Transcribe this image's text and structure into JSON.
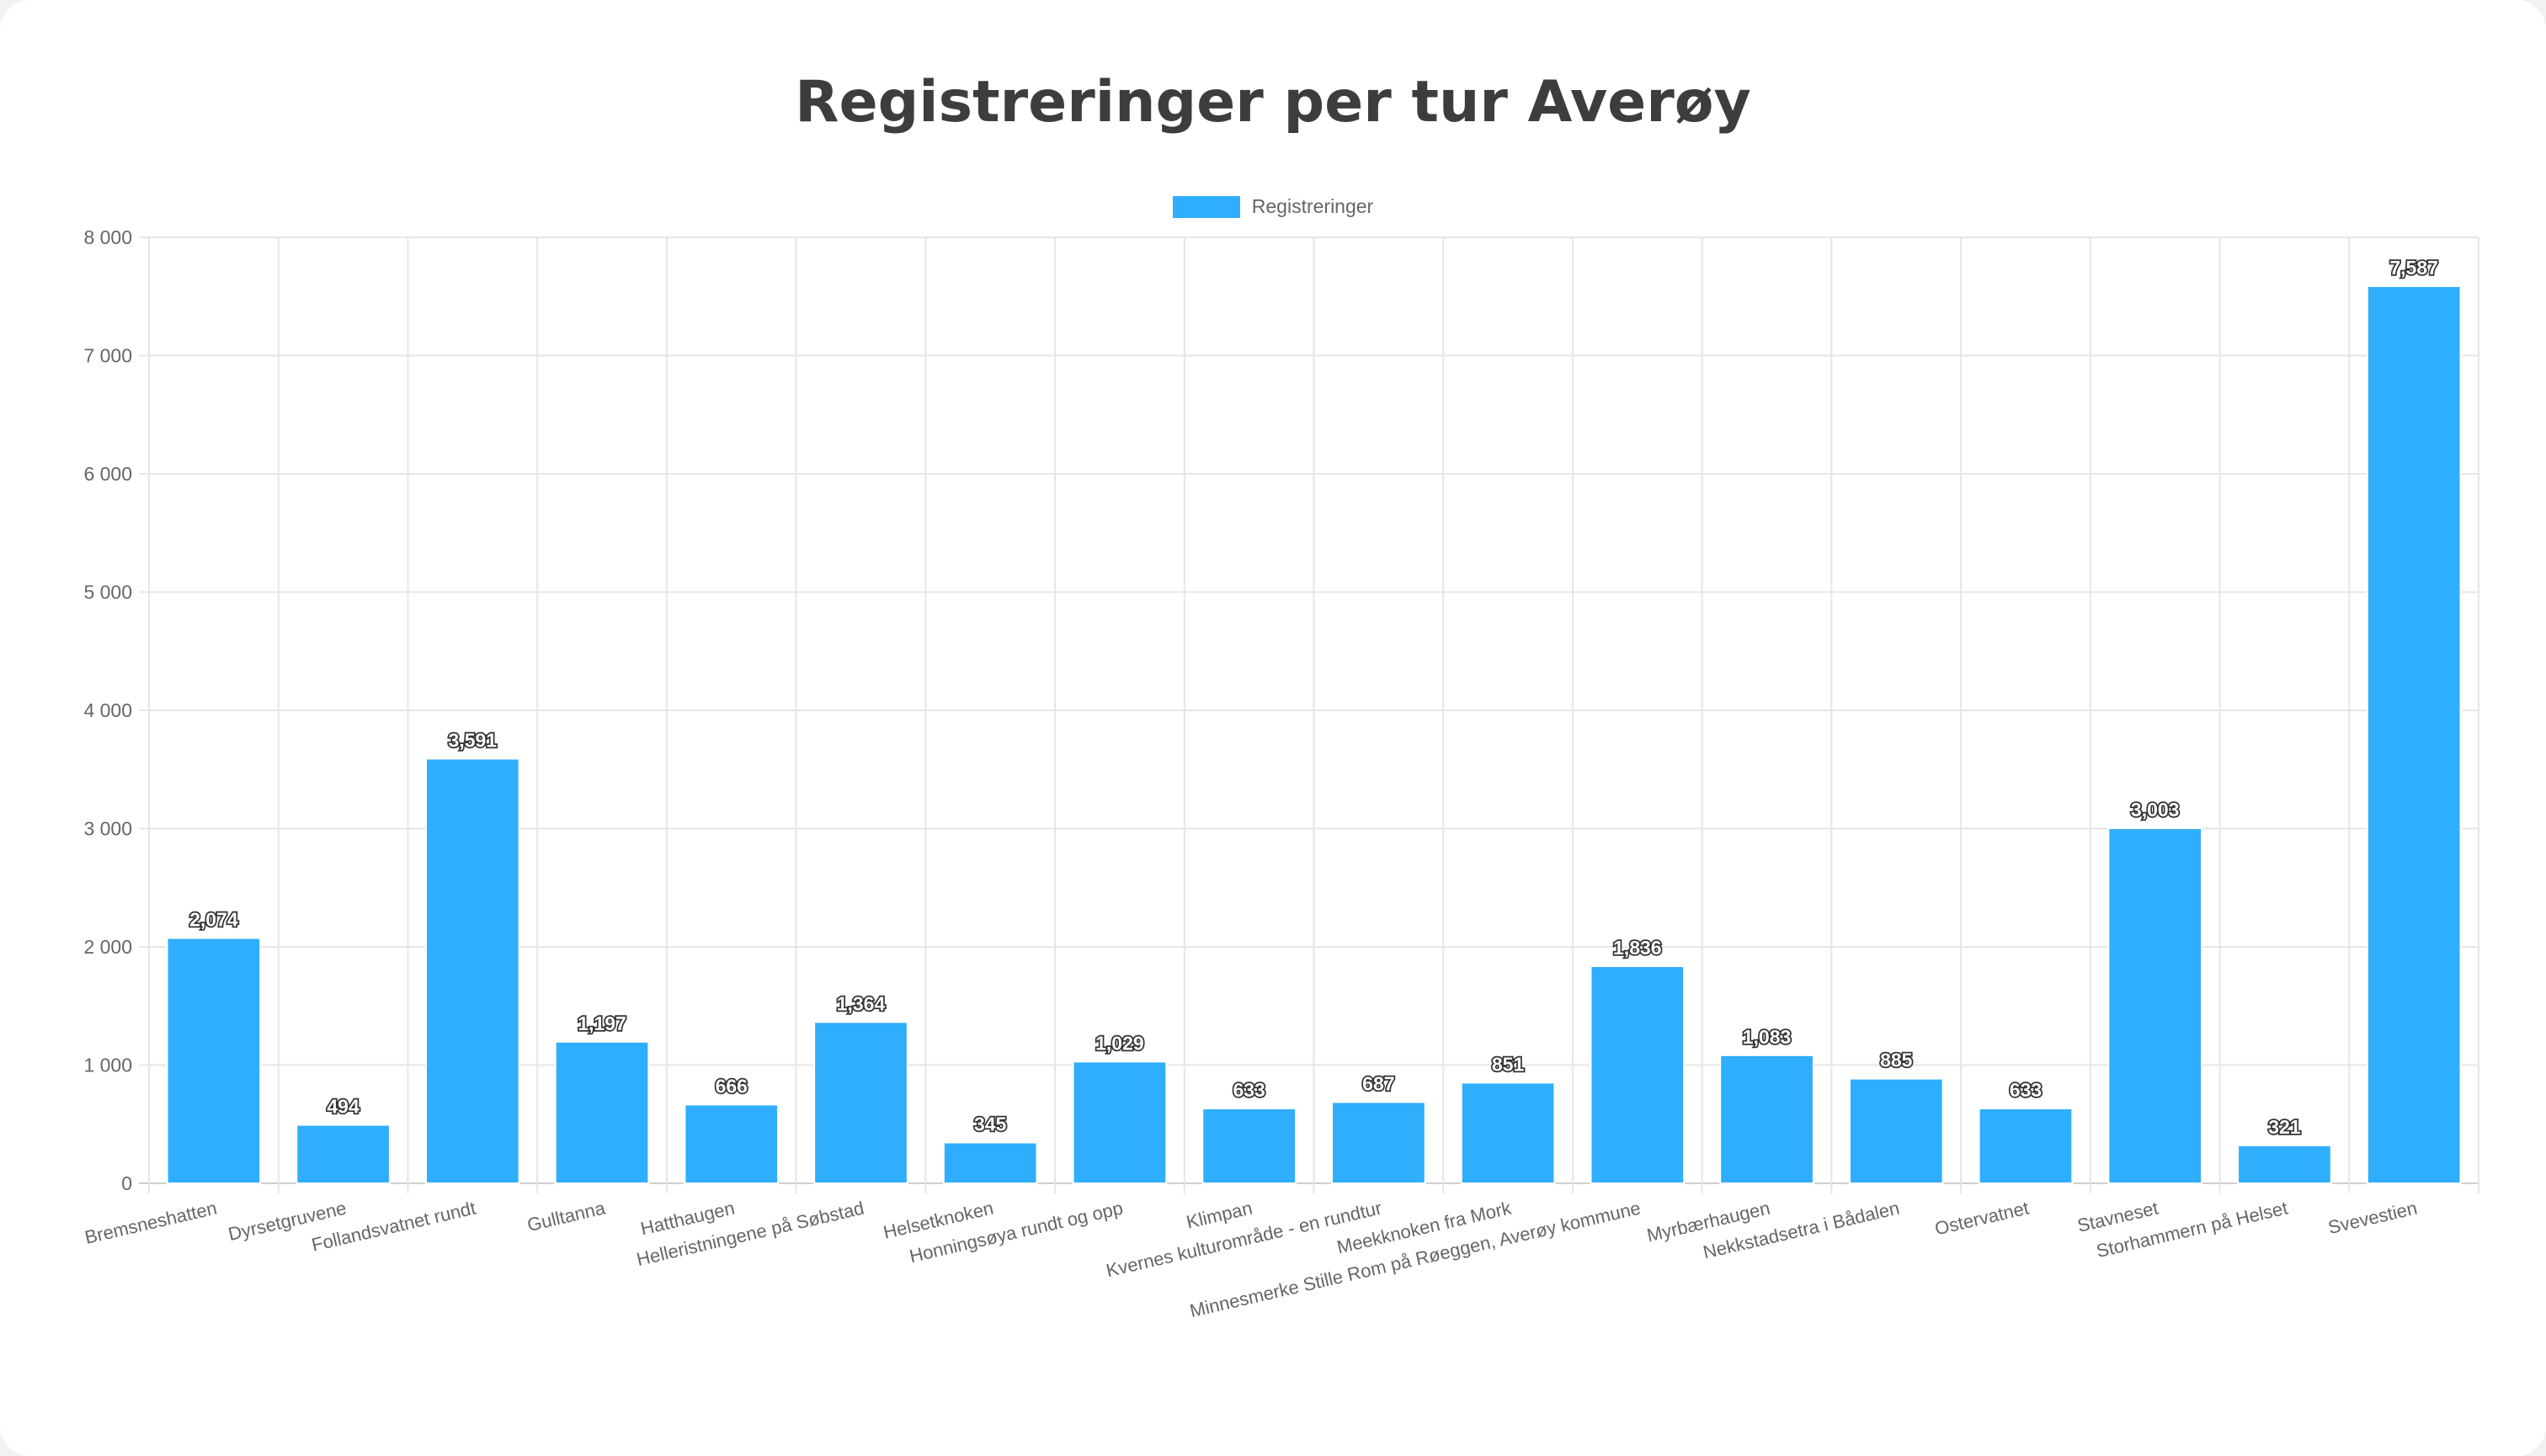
{
  "chart_data": {
    "type": "bar",
    "title": "Registreringer per tur Averøy",
    "xlabel": "",
    "ylabel": "",
    "ylim": [
      0,
      8000
    ],
    "yticks": [
      0,
      1000,
      2000,
      3000,
      4000,
      5000,
      6000,
      7000,
      8000
    ],
    "ytick_labels": [
      "0",
      "1 000",
      "2 000",
      "3 000",
      "4 000",
      "5 000",
      "6 000",
      "7 000",
      "8 000"
    ],
    "grid": true,
    "legend_position": "top-center",
    "categories": [
      "Bremsneshatten",
      "Dyrsetgruvene",
      "Follandsvatnet rundt",
      "Gulltanna",
      "Hatthaugen",
      "Helleristningene på Søbstad",
      "Helsetknoken",
      "Honningsøya rundt og opp",
      "Klimpan",
      "Kvernes kulturområde - en rundtur",
      "Meekknoken fra Mork",
      "Minnesmerke Stille Rom på Røeggen, Averøy kommune",
      "Myrbærhaugen",
      "Nekkstadsetra i Bådalen",
      "Ostervatnet",
      "Stavneset",
      "Storhammern på Helset",
      "Svevestien"
    ],
    "series": [
      {
        "name": "Registreringer",
        "color": "#2eaefc",
        "values": [
          2074,
          494,
          3591,
          1197,
          666,
          1364,
          345,
          1029,
          633,
          687,
          851,
          1836,
          1083,
          885,
          633,
          3003,
          321,
          7587
        ],
        "value_labels": [
          "2,074",
          "494",
          "3,591",
          "1,197",
          "666",
          "1,364",
          "345",
          "1,029",
          "633",
          "687",
          "851",
          "1,836",
          "1,083",
          "885",
          "633",
          "3,003",
          "321",
          "7,587"
        ]
      }
    ]
  }
}
